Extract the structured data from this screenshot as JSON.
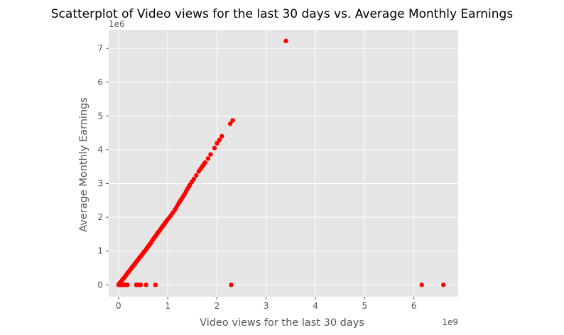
{
  "chart_data": {
    "type": "scatter",
    "title": "Scatterplot of Video views for the last 30 days vs. Average Monthly  Earnings",
    "xlabel": "Video views for the last 30 days",
    "ylabel": "Average Monthly Earnings",
    "x_offset_label": "1e9",
    "y_offset_label": "1e6",
    "xlim": [
      -0.2,
      6.9
    ],
    "ylim": [
      -0.35,
      7.55
    ],
    "xticks": [
      0,
      1,
      2,
      3,
      4,
      5,
      6
    ],
    "yticks": [
      0,
      1,
      2,
      3,
      4,
      5,
      6,
      7
    ],
    "xtick_labels": [
      "0",
      "1",
      "2",
      "3",
      "4",
      "5",
      "6"
    ],
    "ytick_labels": [
      "0",
      "1",
      "2",
      "3",
      "4",
      "5",
      "6",
      "7"
    ],
    "x_scale": "×1e9",
    "y_scale": "×1e6",
    "grid": true,
    "legend": "none",
    "colors": {
      "marker": "#ff0000",
      "plot_bg": "#e5e5e5",
      "grid": "#ffffff",
      "text": "#555555",
      "title": "#000000"
    },
    "points": [
      {
        "x": 0.0,
        "y": 0.0
      },
      {
        "x": 0.01,
        "y": 0.02
      },
      {
        "x": 0.02,
        "y": 0.04
      },
      {
        "x": 0.03,
        "y": 0.06
      },
      {
        "x": 0.04,
        "y": 0.08
      },
      {
        "x": 0.05,
        "y": 0.09
      },
      {
        "x": 0.06,
        "y": 0.11
      },
      {
        "x": 0.07,
        "y": 0.13
      },
      {
        "x": 0.08,
        "y": 0.15
      },
      {
        "x": 0.09,
        "y": 0.17
      },
      {
        "x": 0.1,
        "y": 0.19
      },
      {
        "x": 0.12,
        "y": 0.22
      },
      {
        "x": 0.14,
        "y": 0.26
      },
      {
        "x": 0.16,
        "y": 0.3
      },
      {
        "x": 0.18,
        "y": 0.34
      },
      {
        "x": 0.2,
        "y": 0.38
      },
      {
        "x": 0.22,
        "y": 0.41
      },
      {
        "x": 0.24,
        "y": 0.45
      },
      {
        "x": 0.26,
        "y": 0.49
      },
      {
        "x": 0.28,
        "y": 0.53
      },
      {
        "x": 0.3,
        "y": 0.56
      },
      {
        "x": 0.32,
        "y": 0.6
      },
      {
        "x": 0.34,
        "y": 0.64
      },
      {
        "x": 0.36,
        "y": 0.68
      },
      {
        "x": 0.38,
        "y": 0.71
      },
      {
        "x": 0.4,
        "y": 0.75
      },
      {
        "x": 0.42,
        "y": 0.79
      },
      {
        "x": 0.44,
        "y": 0.83
      },
      {
        "x": 0.46,
        "y": 0.86
      },
      {
        "x": 0.48,
        "y": 0.9
      },
      {
        "x": 0.5,
        "y": 0.94
      },
      {
        "x": 0.52,
        "y": 0.98
      },
      {
        "x": 0.54,
        "y": 1.01
      },
      {
        "x": 0.56,
        "y": 1.05
      },
      {
        "x": 0.58,
        "y": 1.09
      },
      {
        "x": 0.6,
        "y": 1.13
      },
      {
        "x": 0.62,
        "y": 1.17
      },
      {
        "x": 0.64,
        "y": 1.21
      },
      {
        "x": 0.66,
        "y": 1.25
      },
      {
        "x": 0.68,
        "y": 1.3
      },
      {
        "x": 0.7,
        "y": 1.34
      },
      {
        "x": 0.72,
        "y": 1.38
      },
      {
        "x": 0.74,
        "y": 1.42
      },
      {
        "x": 0.76,
        "y": 1.46
      },
      {
        "x": 0.78,
        "y": 1.5
      },
      {
        "x": 0.8,
        "y": 1.55
      },
      {
        "x": 0.82,
        "y": 1.58
      },
      {
        "x": 0.84,
        "y": 1.62
      },
      {
        "x": 0.86,
        "y": 1.66
      },
      {
        "x": 0.88,
        "y": 1.7
      },
      {
        "x": 0.9,
        "y": 1.74
      },
      {
        "x": 0.92,
        "y": 1.78
      },
      {
        "x": 0.94,
        "y": 1.82
      },
      {
        "x": 0.96,
        "y": 1.86
      },
      {
        "x": 0.98,
        "y": 1.9
      },
      {
        "x": 1.02,
        "y": 1.97
      },
      {
        "x": 1.06,
        "y": 2.05
      },
      {
        "x": 1.1,
        "y": 2.13
      },
      {
        "x": 1.14,
        "y": 2.21
      },
      {
        "x": 1.17,
        "y": 2.28
      },
      {
        "x": 1.2,
        "y": 2.36
      },
      {
        "x": 1.23,
        "y": 2.43
      },
      {
        "x": 1.25,
        "y": 2.48
      },
      {
        "x": 1.28,
        "y": 2.54
      },
      {
        "x": 1.31,
        "y": 2.61
      },
      {
        "x": 1.34,
        "y": 2.68
      },
      {
        "x": 1.37,
        "y": 2.76
      },
      {
        "x": 1.4,
        "y": 2.84
      },
      {
        "x": 1.43,
        "y": 2.91
      },
      {
        "x": 1.45,
        "y": 2.96
      },
      {
        "x": 1.49,
        "y": 3.05
      },
      {
        "x": 1.53,
        "y": 3.13
      },
      {
        "x": 1.58,
        "y": 3.24
      },
      {
        "x": 1.63,
        "y": 3.36
      },
      {
        "x": 1.67,
        "y": 3.44
      },
      {
        "x": 1.7,
        "y": 3.5
      },
      {
        "x": 1.73,
        "y": 3.56
      },
      {
        "x": 1.76,
        "y": 3.62
      },
      {
        "x": 1.82,
        "y": 3.74
      },
      {
        "x": 1.87,
        "y": 3.86
      },
      {
        "x": 1.95,
        "y": 4.05
      },
      {
        "x": 2.0,
        "y": 4.19
      },
      {
        "x": 2.05,
        "y": 4.29
      },
      {
        "x": 2.1,
        "y": 4.4
      },
      {
        "x": 2.27,
        "y": 4.77
      },
      {
        "x": 2.32,
        "y": 4.87
      },
      {
        "x": 3.4,
        "y": 7.22
      },
      {
        "x": 0.01,
        "y": 0.0
      },
      {
        "x": 0.03,
        "y": 0.0
      },
      {
        "x": 0.05,
        "y": 0.0
      },
      {
        "x": 0.08,
        "y": 0.0
      },
      {
        "x": 0.11,
        "y": 0.0
      },
      {
        "x": 0.15,
        "y": 0.0
      },
      {
        "x": 0.18,
        "y": 0.0
      },
      {
        "x": 0.36,
        "y": 0.0
      },
      {
        "x": 0.4,
        "y": 0.0
      },
      {
        "x": 0.45,
        "y": 0.0
      },
      {
        "x": 0.56,
        "y": 0.0
      },
      {
        "x": 0.75,
        "y": 0.0
      },
      {
        "x": 2.29,
        "y": 0.0
      },
      {
        "x": 6.16,
        "y": 0.0
      },
      {
        "x": 6.6,
        "y": 0.0
      }
    ]
  }
}
